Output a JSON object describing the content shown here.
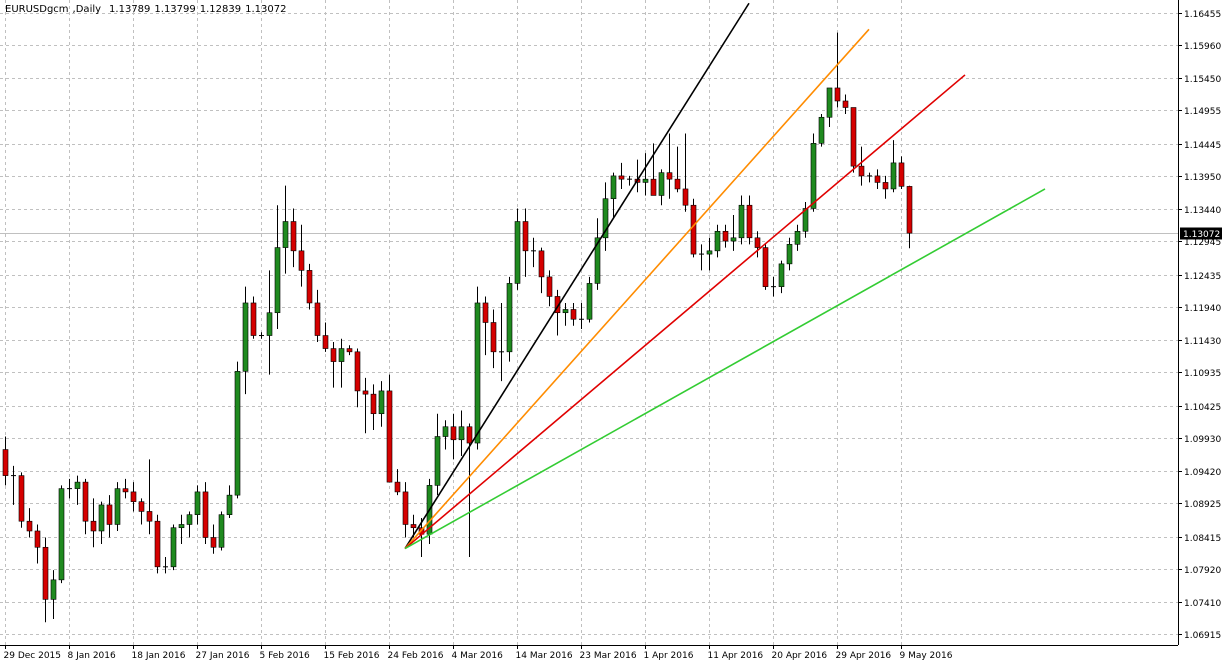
{
  "header": {
    "symbol": "EURUSDgcm",
    "timeframe": "Daily",
    "open": "1.13789",
    "high": "1.13799",
    "low": "1.12839",
    "close": "1.13072"
  },
  "colors": {
    "background": "#ffffff",
    "grid": "#c0c0c0",
    "bull_candle": "#1f8a1f",
    "bear_candle": "#d50000",
    "wick": "#000000",
    "current_price_box": "#000000",
    "current_price_line": "#c0c0c0",
    "fan_black": "#000000",
    "fan_orange": "#ff8c00",
    "fan_red": "#e00000",
    "fan_green": "#33cc33"
  },
  "chart_data": {
    "type": "candlestick",
    "symbol": "EURUSDgcm",
    "timeframe": "Daily",
    "ylim": [
      1.0675,
      1.1665
    ],
    "y_ticks": [
      "1.16455",
      "1.15960",
      "1.15450",
      "1.14955",
      "1.14445",
      "1.13950",
      "1.13440",
      "1.12945",
      "1.12435",
      "1.11940",
      "1.11430",
      "1.10935",
      "1.10425",
      "1.09930",
      "1.09420",
      "1.08925",
      "1.08415",
      "1.07920",
      "1.07410",
      "1.06915"
    ],
    "x_labels": [
      "29 Dec 2015",
      "8 Jan 2016",
      "18 Jan 2016",
      "27 Jan 2016",
      "5 Feb 2016",
      "15 Feb 2016",
      "24 Feb 2016",
      "4 Mar 2016",
      "14 Mar 2016",
      "23 Mar 2016",
      "1 Apr 2016",
      "11 Apr 2016",
      "20 Apr 2016",
      "29 Apr 2016",
      "9 May 2016"
    ],
    "x_label_bar_index": [
      0,
      8,
      16,
      24,
      32,
      40,
      48,
      56,
      64,
      72,
      80,
      88,
      96,
      104,
      112
    ],
    "current_price": "1.13072",
    "grid": true,
    "candles": [
      [
        1.0975,
        1.0995,
        1.092,
        1.0935
      ],
      [
        1.0935,
        1.095,
        1.089,
        1.0935
      ],
      [
        1.0935,
        1.094,
        1.0855,
        1.0865
      ],
      [
        1.0865,
        1.0885,
        1.084,
        1.085
      ],
      [
        1.085,
        1.086,
        1.08,
        1.0825
      ],
      [
        1.0825,
        1.084,
        1.071,
        1.0745
      ],
      [
        1.0745,
        1.079,
        1.0715,
        1.0775
      ],
      [
        1.0775,
        1.092,
        1.077,
        1.0915
      ],
      [
        1.0915,
        1.093,
        1.09,
        1.0915
      ],
      [
        1.0915,
        1.0935,
        1.089,
        1.0925
      ],
      [
        1.0925,
        1.093,
        1.0845,
        1.0865
      ],
      [
        1.0865,
        1.09,
        1.0825,
        1.085
      ],
      [
        1.085,
        1.0895,
        1.083,
        1.089
      ],
      [
        1.089,
        1.0905,
        1.084,
        1.086
      ],
      [
        1.086,
        1.0925,
        1.085,
        1.0915
      ],
      [
        1.0915,
        1.093,
        1.09,
        1.091
      ],
      [
        1.091,
        1.0925,
        1.088,
        1.0895
      ],
      [
        1.0895,
        1.09,
        1.086,
        1.088
      ],
      [
        1.088,
        1.096,
        1.0845,
        1.0865
      ],
      [
        1.0865,
        1.0875,
        1.0785,
        1.0795
      ],
      [
        1.0795,
        1.081,
        1.0785,
        1.0795
      ],
      [
        1.0795,
        1.086,
        1.079,
        1.0855
      ],
      [
        1.0855,
        1.0875,
        1.083,
        1.086
      ],
      [
        1.086,
        1.088,
        1.084,
        1.0875
      ],
      [
        1.0875,
        1.092,
        1.086,
        1.091
      ],
      [
        1.091,
        1.0925,
        1.083,
        1.084
      ],
      [
        1.084,
        1.086,
        1.0815,
        1.0825
      ],
      [
        1.0825,
        1.088,
        1.082,
        1.0875
      ],
      [
        1.0875,
        1.092,
        1.087,
        1.0905
      ],
      [
        1.0905,
        1.111,
        1.09,
        1.1095
      ],
      [
        1.1095,
        1.1225,
        1.106,
        1.12
      ],
      [
        1.12,
        1.121,
        1.1145,
        1.115
      ],
      [
        1.115,
        1.1155,
        1.1145,
        1.115
      ],
      [
        1.115,
        1.125,
        1.109,
        1.1185
      ],
      [
        1.1185,
        1.135,
        1.116,
        1.1285
      ],
      [
        1.1285,
        1.138,
        1.1245,
        1.1325
      ],
      [
        1.1325,
        1.1345,
        1.1255,
        1.128
      ],
      [
        1.128,
        1.132,
        1.1225,
        1.125
      ],
      [
        1.125,
        1.126,
        1.119,
        1.12
      ],
      [
        1.12,
        1.122,
        1.114,
        1.115
      ],
      [
        1.115,
        1.117,
        1.1125,
        1.113
      ],
      [
        1.113,
        1.114,
        1.107,
        1.111
      ],
      [
        1.111,
        1.1145,
        1.107,
        1.113
      ],
      [
        1.113,
        1.1135,
        1.112,
        1.1125
      ],
      [
        1.1125,
        1.113,
        1.104,
        1.1065
      ],
      [
        1.1065,
        1.1085,
        1.1,
        1.106
      ],
      [
        1.106,
        1.1075,
        1.1005,
        1.103
      ],
      [
        1.103,
        1.108,
        1.101,
        1.1065
      ],
      [
        1.1065,
        1.109,
        1.093,
        1.0925
      ],
      [
        1.0925,
        1.0945,
        1.0905,
        1.091
      ],
      [
        1.091,
        1.0925,
        1.084,
        1.086
      ],
      [
        1.086,
        1.0875,
        1.084,
        1.0855
      ],
      [
        1.0855,
        1.087,
        1.081,
        1.0845
      ],
      [
        1.0845,
        1.093,
        1.083,
        1.092
      ],
      [
        1.092,
        1.103,
        1.0905,
        1.0995
      ],
      [
        1.0995,
        1.102,
        1.0975,
        1.101
      ],
      [
        1.101,
        1.103,
        1.096,
        1.099
      ],
      [
        1.099,
        1.1035,
        1.0965,
        1.101
      ],
      [
        1.101,
        1.1015,
        1.081,
        1.0985
      ],
      [
        1.0985,
        1.1225,
        1.0975,
        1.12
      ],
      [
        1.12,
        1.121,
        1.112,
        1.117
      ],
      [
        1.117,
        1.119,
        1.11,
        1.1125
      ],
      [
        1.1125,
        1.12,
        1.108,
        1.1125
      ],
      [
        1.1125,
        1.124,
        1.111,
        1.123
      ],
      [
        1.123,
        1.1345,
        1.122,
        1.1325
      ],
      [
        1.1325,
        1.1345,
        1.124,
        1.128
      ],
      [
        1.128,
        1.13,
        1.1255,
        1.128
      ],
      [
        1.128,
        1.1285,
        1.1215,
        1.124
      ],
      [
        1.124,
        1.125,
        1.1195,
        1.121
      ],
      [
        1.121,
        1.122,
        1.115,
        1.1185
      ],
      [
        1.1185,
        1.12,
        1.1165,
        1.119
      ],
      [
        1.119,
        1.12,
        1.1165,
        1.1175
      ],
      [
        1.1175,
        1.12,
        1.116,
        1.1175
      ],
      [
        1.1175,
        1.124,
        1.117,
        1.123
      ],
      [
        1.123,
        1.133,
        1.122,
        1.13
      ],
      [
        1.13,
        1.1385,
        1.128,
        1.136
      ],
      [
        1.136,
        1.14,
        1.133,
        1.1395
      ],
      [
        1.1395,
        1.1415,
        1.1375,
        1.139
      ],
      [
        1.139,
        1.1395,
        1.138,
        1.139
      ],
      [
        1.139,
        1.142,
        1.137,
        1.1385
      ],
      [
        1.1385,
        1.143,
        1.1365,
        1.139
      ],
      [
        1.139,
        1.1445,
        1.137,
        1.1365
      ],
      [
        1.1365,
        1.1405,
        1.135,
        1.14
      ],
      [
        1.14,
        1.146,
        1.136,
        1.139
      ],
      [
        1.139,
        1.144,
        1.137,
        1.1375
      ],
      [
        1.1375,
        1.146,
        1.134,
        1.135
      ],
      [
        1.135,
        1.136,
        1.127,
        1.1275
      ],
      [
        1.1275,
        1.129,
        1.125,
        1.1275
      ],
      [
        1.1275,
        1.13,
        1.125,
        1.128
      ],
      [
        1.128,
        1.132,
        1.127,
        1.131
      ],
      [
        1.131,
        1.132,
        1.1285,
        1.1295
      ],
      [
        1.1295,
        1.1335,
        1.128,
        1.13
      ],
      [
        1.13,
        1.1365,
        1.129,
        1.135
      ],
      [
        1.135,
        1.1365,
        1.129,
        1.13
      ],
      [
        1.13,
        1.131,
        1.127,
        1.1285
      ],
      [
        1.1285,
        1.129,
        1.122,
        1.1225
      ],
      [
        1.1225,
        1.124,
        1.121,
        1.1225
      ],
      [
        1.1225,
        1.1265,
        1.1215,
        1.126
      ],
      [
        1.126,
        1.13,
        1.125,
        1.129
      ],
      [
        1.129,
        1.132,
        1.128,
        1.131
      ],
      [
        1.131,
        1.1355,
        1.13,
        1.1345
      ],
      [
        1.1345,
        1.146,
        1.134,
        1.1445
      ],
      [
        1.1445,
        1.149,
        1.144,
        1.1485
      ],
      [
        1.1485,
        1.153,
        1.147,
        1.153
      ],
      [
        1.153,
        1.1615,
        1.15,
        1.151
      ],
      [
        1.151,
        1.152,
        1.149,
        1.15
      ],
      [
        1.15,
        1.15,
        1.14,
        1.141
      ],
      [
        1.141,
        1.144,
        1.138,
        1.1395
      ],
      [
        1.1395,
        1.14,
        1.1385,
        1.1395
      ],
      [
        1.1395,
        1.1405,
        1.1375,
        1.1385
      ],
      [
        1.1385,
        1.1395,
        1.136,
        1.1375
      ],
      [
        1.1375,
        1.145,
        1.137,
        1.1415
      ],
      [
        1.1415,
        1.1425,
        1.1375,
        1.1379
      ],
      [
        1.13789,
        1.13799,
        1.12839,
        1.13072
      ]
    ],
    "trendlines": [
      {
        "color": "fan_black",
        "from": [
          50,
          1.0823
        ],
        "to": [
          93,
          1.166
        ]
      },
      {
        "color": "fan_orange",
        "from": [
          50,
          1.0823
        ],
        "to": [
          108,
          1.162
        ]
      },
      {
        "color": "fan_red",
        "from": [
          50,
          1.0823
        ],
        "to": [
          120,
          1.155
        ]
      },
      {
        "color": "fan_green",
        "from": [
          50,
          1.0823
        ],
        "to": [
          130,
          1.1375
        ]
      }
    ]
  }
}
